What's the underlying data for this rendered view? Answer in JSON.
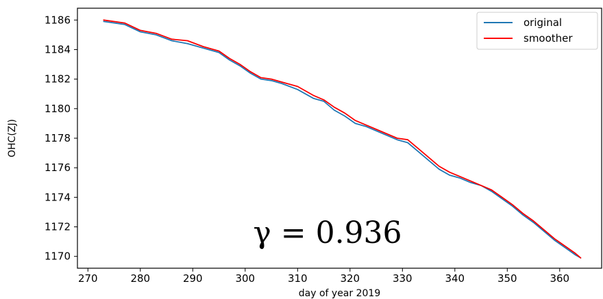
{
  "chart_data": {
    "type": "line",
    "xlabel": "day of year 2019",
    "ylabel": "OHC(ZJ)",
    "xlim": [
      268,
      368
    ],
    "ylim": [
      1169.2,
      1186.8
    ],
    "xticks": [
      270,
      280,
      290,
      300,
      310,
      320,
      330,
      340,
      350,
      360
    ],
    "yticks": [
      1170,
      1172,
      1174,
      1176,
      1178,
      1180,
      1182,
      1184,
      1186
    ],
    "grid": false,
    "legend_position": "top-right",
    "annotation": "γ = 0.936",
    "series": [
      {
        "name": "original",
        "color": "#1f77b4",
        "x": [
          273,
          277,
          280,
          283,
          286,
          289,
          292,
          295,
          297,
          299,
          301,
          303,
          305,
          307,
          310,
          313,
          315,
          317,
          319,
          321,
          323,
          325,
          327,
          329,
          331,
          333,
          335,
          337,
          339,
          341,
          343,
          345,
          347,
          349,
          351,
          353,
          355,
          357,
          359,
          361,
          363,
          364
        ],
        "values": [
          1185.9,
          1185.7,
          1185.2,
          1185.0,
          1184.6,
          1184.4,
          1184.1,
          1183.8,
          1183.3,
          1182.9,
          1182.4,
          1182.0,
          1181.9,
          1181.7,
          1181.3,
          1180.7,
          1180.5,
          1179.9,
          1179.5,
          1179.0,
          1178.8,
          1178.5,
          1178.2,
          1177.9,
          1177.7,
          1177.1,
          1176.5,
          1175.9,
          1175.5,
          1175.3,
          1175.0,
          1174.8,
          1174.4,
          1173.9,
          1173.4,
          1172.8,
          1172.3,
          1171.7,
          1171.1,
          1170.6,
          1170.1,
          1169.9
        ]
      },
      {
        "name": "smoother",
        "color": "#ff0000",
        "x": [
          273,
          277,
          280,
          283,
          286,
          289,
          292,
          295,
          297,
          299,
          301,
          303,
          305,
          307,
          310,
          313,
          315,
          317,
          319,
          321,
          323,
          325,
          327,
          329,
          331,
          333,
          335,
          337,
          339,
          341,
          343,
          345,
          347,
          349,
          351,
          353,
          355,
          357,
          359,
          361,
          363,
          364
        ],
        "values": [
          1186.0,
          1185.8,
          1185.3,
          1185.1,
          1184.7,
          1184.6,
          1184.2,
          1183.9,
          1183.4,
          1183.0,
          1182.5,
          1182.1,
          1182.0,
          1181.8,
          1181.5,
          1180.9,
          1180.6,
          1180.1,
          1179.7,
          1179.2,
          1178.9,
          1178.6,
          1178.3,
          1178.0,
          1177.9,
          1177.3,
          1176.7,
          1176.1,
          1175.7,
          1175.4,
          1175.1,
          1174.8,
          1174.5,
          1174.0,
          1173.5,
          1172.9,
          1172.4,
          1171.8,
          1171.2,
          1170.7,
          1170.2,
          1169.9
        ]
      }
    ]
  }
}
